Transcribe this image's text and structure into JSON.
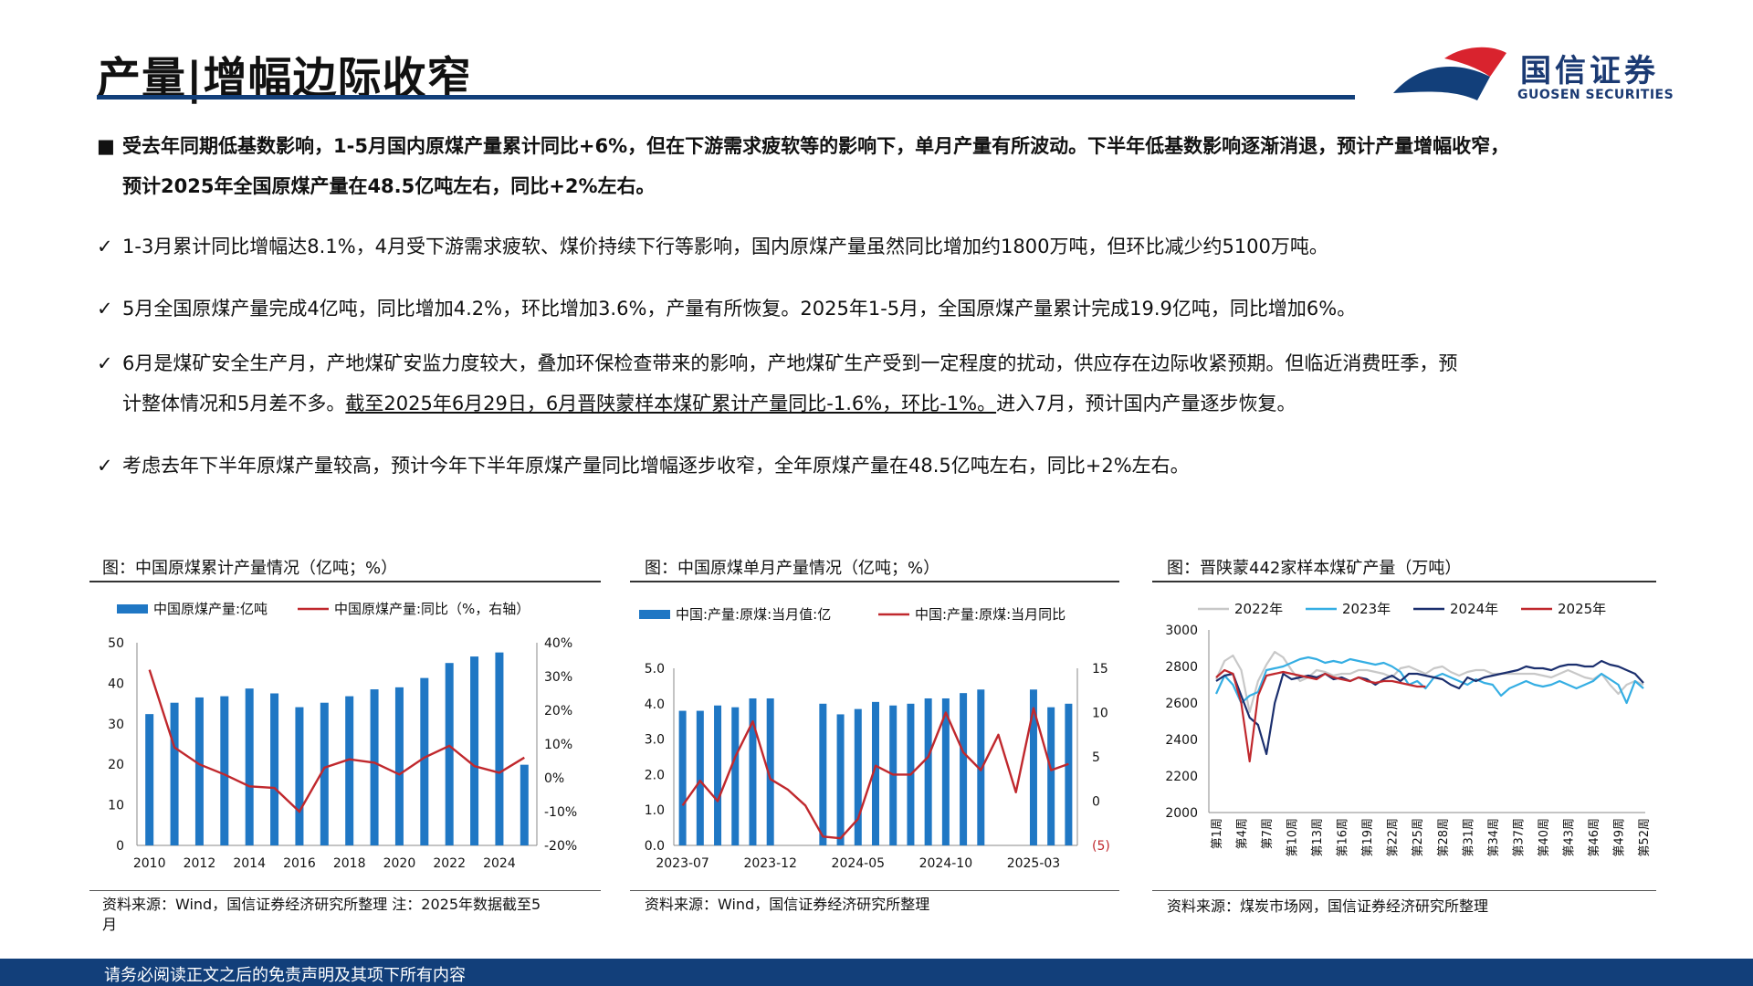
{
  "header": {
    "title": "产量|增幅边际收窄",
    "logo_cn": "国信证券",
    "logo_en": "GUOSEN SECURITIES",
    "brand_blue": "#123f7a",
    "brand_red": "#d9232e"
  },
  "body": {
    "bullet_main_marker": "■",
    "bullet_main_line1": "受去年同期低基数影响，1-5月国内原煤产量累计同比+6%，但在下游需求疲软等的影响下，单月产量有所波动。下半年低基数影响逐渐消退，预计产量增幅收窄，",
    "bullet_main_line2": "预计2025年全国原煤产量在48.5亿吨左右，同比+2%左右。",
    "check_marker": "✓",
    "check1": "1-3月累计同比增幅达8.1%，4月受下游需求疲软、煤价持续下行等影响，国内原煤产量虽然同比增加约1800万吨，但环比减少约5100万吨。",
    "check2": "5月全国原煤产量完成4亿吨，同比增加4.2%，环比增加3.6%，产量有所恢复。2025年1-5月，全国原煤产量累计完成19.9亿吨，同比增加6%。",
    "check3_line1": "6月是煤矿安全生产月，产地煤矿安监力度较大，叠加环保检查带来的影响，产地煤矿生产受到一定程度的扰动，供应存在边际收紧预期。但临近消费旺季，预",
    "check3_line2_a": "计整体情况和5月差不多。",
    "check3_line2_u": "截至2025年6月29日，6月晋陕蒙样本煤矿累计产量同比-1.6%，环比-1%。",
    "check3_line2_b": "进入7月，预计国内产量逐步恢复。",
    "check4": "考虑去年下半年原煤产量较高，预计今年下半年原煤产量同比增幅逐步收窄，全年原煤产量在48.5亿吨左右，同比+2%左右。"
  },
  "charts": {
    "chart1_title": "图：中国原煤累计产量情况（亿吨；%）",
    "chart1_source_line1": "资料来源：Wind，国信证券经济研究所整理 注：2025年数据截至5",
    "chart1_source_line2": "月",
    "chart2_title": "图：中国原煤单月产量情况（亿吨；%）",
    "chart2_source": "资料来源：Wind，国信证券经济研究所整理",
    "chart3_title": "图：晋陕蒙442家样本煤矿产量（万吨）",
    "chart3_source": "资料来源：煤炭市场网，国信证券经济研究所整理"
  },
  "footer": {
    "text": "请务必阅读正文之后的免责声明及其项下所有内容"
  },
  "chart_data": [
    {
      "type": "bar",
      "legend": [
        "中国原煤产量:亿吨",
        "中国原煤产量:同比（%，右轴）"
      ],
      "legend_position": "top",
      "x": [
        2010,
        2011,
        2012,
        2013,
        2014,
        2015,
        2016,
        2017,
        2018,
        2019,
        2020,
        2021,
        2022,
        2023,
        2024,
        2025
      ],
      "x_tick_labels": [
        "2010",
        "2012",
        "2014",
        "2016",
        "2018",
        "2020",
        "2022",
        "2024"
      ],
      "series": [
        {
          "name": "中国原煤产量:亿吨",
          "kind": "bar",
          "axis": "left",
          "color": "#1f77c4",
          "values": [
            32.4,
            35.2,
            36.5,
            36.8,
            38.7,
            37.5,
            34.1,
            35.2,
            36.8,
            38.5,
            39.0,
            41.3,
            45.0,
            46.6,
            47.6,
            19.9
          ]
        },
        {
          "name": "中国原煤产量:同比（%，右轴）",
          "kind": "line",
          "axis": "right",
          "color": "#c0282d",
          "values": [
            32,
            9,
            4,
            1,
            -2.5,
            -3,
            -10,
            3,
            5.5,
            4.5,
            1,
            6,
            9.5,
            3.5,
            1.5,
            6
          ]
        }
      ],
      "ylim_left": [
        0,
        50
      ],
      "yticks_left": [
        "0",
        "10",
        "20",
        "30",
        "40",
        "50"
      ],
      "ylim_right": [
        -20,
        40
      ],
      "yticks_right": [
        "-20%",
        "-10%",
        "0%",
        "10%",
        "20%",
        "30%",
        "40%"
      ],
      "grid": false
    },
    {
      "type": "bar",
      "legend": [
        "中国:产量:原煤:当月值:亿",
        "中国:产量:原煤:当月同比"
      ],
      "legend_position": "top",
      "x_tick_labels": [
        "2023-07",
        "2023-12",
        "2024-05",
        "2024-10",
        "2025-03"
      ],
      "series": [
        {
          "name": "中国:产量:原煤:当月值:亿",
          "kind": "bar",
          "axis": "left",
          "color": "#1f77c4",
          "values": [
            3.8,
            3.8,
            3.95,
            3.9,
            4.15,
            4.15,
            null,
            null,
            4.0,
            3.7,
            3.85,
            4.05,
            3.95,
            4.0,
            4.15,
            4.15,
            4.3,
            4.4,
            null,
            null,
            4.4,
            3.9,
            4.0
          ]
        },
        {
          "name": "中国:产量:原煤:当月同比",
          "kind": "line",
          "axis": "right",
          "color": "#c0282d",
          "values": [
            -0.5,
            2.3,
            0,
            5,
            9,
            2.5,
            1.3,
            -0.5,
            -4,
            -4.2,
            -2,
            4,
            3,
            3,
            5,
            10,
            5.5,
            3.5,
            7.5,
            1,
            10.5,
            3.5,
            4.2
          ]
        },
        {
          "name": "",
          "kind": "line",
          "color": "#c0282d",
          "values": []
        }
      ],
      "ylim_left": [
        0,
        5
      ],
      "yticks_left": [
        "0.0",
        "1.0",
        "2.0",
        "3.0",
        "4.0",
        "5.0"
      ],
      "ylim_right": [
        -5,
        15
      ],
      "yticks_right": [
        "(5)",
        "0",
        "5",
        "10",
        "15"
      ],
      "grid": false
    },
    {
      "type": "line",
      "legend": [
        "2022年",
        "2023年",
        "2024年",
        "2025年"
      ],
      "legend_position": "top",
      "x_tick_labels": [
        "第1周",
        "第4周",
        "第7周",
        "第10周",
        "第13周",
        "第16周",
        "第19周",
        "第22周",
        "第25周",
        "第28周",
        "第31周",
        "第34周",
        "第37周",
        "第40周",
        "第43周",
        "第46周",
        "第49周",
        "第52周"
      ],
      "series": [
        {
          "name": "2022年",
          "color": "#c8c8c8",
          "values": [
            2730,
            2830,
            2860,
            2780,
            2550,
            2720,
            2810,
            2880,
            2850,
            2780,
            2720,
            2740,
            2780,
            2770,
            2750,
            2760,
            2760,
            2780,
            2780,
            2770,
            2760,
            2740,
            2790,
            2800,
            2780,
            2760,
            2790,
            2800,
            2770,
            2750,
            2770,
            2780,
            2780,
            2760,
            2760,
            2760,
            2760,
            2760,
            2760,
            2750,
            2740,
            2760,
            2780,
            2760,
            2740,
            2730,
            2760,
            2700,
            2650,
            2700,
            2720,
            2700
          ]
        },
        {
          "name": "2023年",
          "color": "#35aee3",
          "values": [
            2650,
            2750,
            2700,
            2600,
            2640,
            2660,
            2780,
            2790,
            2800,
            2820,
            2840,
            2850,
            2840,
            2820,
            2830,
            2820,
            2840,
            2830,
            2820,
            2810,
            2820,
            2800,
            2770,
            2700,
            2720,
            2680,
            2740,
            2760,
            2740,
            2720,
            2700,
            2730,
            2710,
            2700,
            2640,
            2680,
            2700,
            2720,
            2700,
            2690,
            2700,
            2720,
            2700,
            2680,
            2700,
            2720,
            2760,
            2730,
            2700,
            2600,
            2720,
            2680
          ]
        },
        {
          "name": "2024年",
          "color": "#1b2f6e",
          "values": [
            2720,
            2750,
            2760,
            2640,
            2520,
            2480,
            2320,
            2600,
            2760,
            2730,
            2740,
            2750,
            2740,
            2760,
            2730,
            2740,
            2720,
            2740,
            2730,
            2700,
            2730,
            2750,
            2720,
            2760,
            2760,
            2750,
            2740,
            2730,
            2700,
            2680,
            2740,
            2720,
            2740,
            2750,
            2760,
            2770,
            2780,
            2800,
            2790,
            2790,
            2780,
            2800,
            2810,
            2810,
            2800,
            2800,
            2830,
            2810,
            2800,
            2780,
            2760,
            2710
          ]
        },
        {
          "name": "2025年",
          "color": "#c0282d",
          "values": [
            2740,
            2780,
            2760,
            2600,
            2280,
            2640,
            2750,
            2760,
            2770,
            2760,
            2750,
            2740,
            2730,
            2760,
            2740,
            2730,
            2720,
            2740,
            2720,
            2710,
            2720,
            2720,
            2710,
            2700,
            2690,
            2690,
            null,
            null,
            null,
            null,
            null,
            null,
            null,
            null,
            null,
            null,
            null,
            null,
            null,
            null,
            null,
            null,
            null,
            null,
            null,
            null,
            null,
            null,
            null,
            null,
            null,
            null
          ]
        }
      ],
      "ylim": [
        2000,
        3000
      ],
      "yticks": [
        "2000",
        "2200",
        "2400",
        "2600",
        "2800",
        "3000"
      ],
      "grid": false
    }
  ]
}
